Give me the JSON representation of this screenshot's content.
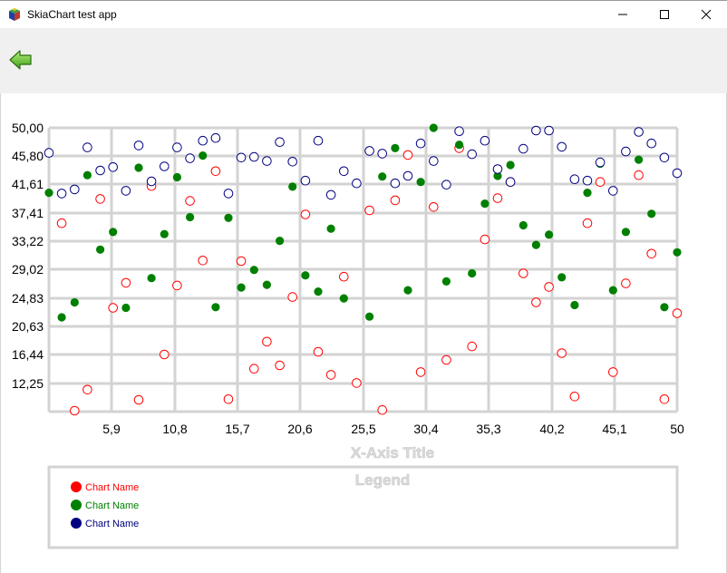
{
  "window": {
    "title": "SkiaChart test app",
    "icon": "skiachart-cube-icon",
    "controls": [
      "minimize-icon",
      "maximize-icon",
      "close-icon"
    ]
  },
  "toolbar": {
    "back_icon": "green-left-arrow-icon"
  },
  "chart_data": {
    "type": "scatter",
    "xlabel": "X-Axis Title",
    "legend_title": "Legend",
    "legend_position": "bottom",
    "grid": true,
    "xlim": [
      1,
      50
    ],
    "ylim": [
      8.06,
      50
    ],
    "x_ticks": [
      "5,9",
      "10,8",
      "15,7",
      "20,6",
      "25,5",
      "30,4",
      "35,3",
      "40,2",
      "45,1",
      "50"
    ],
    "y_ticks": [
      "50,00",
      "45,80",
      "41,61",
      "37,41",
      "33,22",
      "29,02",
      "24,83",
      "20,63",
      "16,44",
      "12,25"
    ],
    "series": [
      {
        "name": "Chart Name",
        "color": "#ff0000",
        "marker": "hollow-circle",
        "points": [
          [
            1,
            35.9
          ],
          [
            2,
            8.2
          ],
          [
            3,
            11.3
          ],
          [
            4,
            39.5
          ],
          [
            5,
            23.4
          ],
          [
            6,
            27.1
          ],
          [
            7,
            9.8
          ],
          [
            8,
            41.4
          ],
          [
            9,
            16.5
          ],
          [
            10,
            26.7
          ],
          [
            11,
            39.2
          ],
          [
            12,
            30.4
          ],
          [
            13,
            43.6
          ],
          [
            14,
            9.9
          ],
          [
            15,
            30.3
          ],
          [
            16,
            14.4
          ],
          [
            17,
            18.4
          ],
          [
            18,
            14.9
          ],
          [
            19,
            25.0
          ],
          [
            20,
            37.2
          ],
          [
            21,
            16.9
          ],
          [
            22,
            13.5
          ],
          [
            23,
            28.0
          ],
          [
            24,
            12.3
          ],
          [
            25,
            37.8
          ],
          [
            26,
            8.3
          ],
          [
            27,
            39.3
          ],
          [
            28,
            46.0
          ],
          [
            29,
            13.9
          ],
          [
            30,
            38.3
          ],
          [
            31,
            15.7
          ],
          [
            32,
            47.0
          ],
          [
            33,
            17.7
          ],
          [
            34,
            33.5
          ],
          [
            35,
            39.6
          ],
          [
            36,
            42.0
          ],
          [
            37,
            28.5
          ],
          [
            38,
            24.2
          ],
          [
            39,
            26.5
          ],
          [
            40,
            16.7
          ],
          [
            41,
            10.3
          ],
          [
            42,
            35.9
          ],
          [
            43,
            42.0
          ],
          [
            44,
            13.9
          ],
          [
            45,
            27.0
          ],
          [
            46,
            43.0
          ],
          [
            47,
            31.4
          ],
          [
            48,
            9.9
          ],
          [
            49,
            22.6
          ]
        ]
      },
      {
        "name": "Chart Name",
        "color": "#008000",
        "marker": "filled-circle",
        "points": [
          [
            0,
            40.4
          ],
          [
            1,
            22.0
          ],
          [
            2,
            24.2
          ],
          [
            3,
            43.0
          ],
          [
            4,
            32.0
          ],
          [
            5,
            34.6
          ],
          [
            6,
            23.4
          ],
          [
            7,
            44.1
          ],
          [
            8,
            27.8
          ],
          [
            9,
            34.3
          ],
          [
            10,
            42.7
          ],
          [
            11,
            36.8
          ],
          [
            12,
            45.9
          ],
          [
            13,
            23.5
          ],
          [
            14,
            36.7
          ],
          [
            15,
            26.4
          ],
          [
            16,
            29.0
          ],
          [
            17,
            26.8
          ],
          [
            18,
            33.3
          ],
          [
            19,
            41.3
          ],
          [
            20,
            28.2
          ],
          [
            21,
            25.8
          ],
          [
            22,
            35.1
          ],
          [
            23,
            24.8
          ],
          [
            24,
            41.9
          ],
          [
            25,
            22.1
          ],
          [
            26,
            42.8
          ],
          [
            27,
            47.0
          ],
          [
            28,
            26.0
          ],
          [
            29,
            42.0
          ],
          [
            30,
            50.0
          ],
          [
            31,
            27.3
          ],
          [
            32,
            47.5
          ],
          [
            33,
            28.5
          ],
          [
            34,
            38.8
          ],
          [
            35,
            42.9
          ],
          [
            36,
            44.5
          ],
          [
            37,
            35.6
          ],
          [
            38,
            32.7
          ],
          [
            39,
            34.2
          ],
          [
            40,
            27.9
          ],
          [
            41,
            23.8
          ],
          [
            42,
            40.4
          ],
          [
            43,
            44.7
          ],
          [
            44,
            26.0
          ],
          [
            45,
            34.6
          ],
          [
            46,
            45.3
          ],
          [
            47,
            37.3
          ],
          [
            48,
            23.5
          ],
          [
            49,
            31.6
          ]
        ]
      },
      {
        "name": "Chart Name",
        "color": "#000080",
        "marker": "hollow-circle",
        "points": [
          [
            0,
            46.3
          ],
          [
            1,
            40.3
          ],
          [
            2,
            40.9
          ],
          [
            3,
            47.1
          ],
          [
            4,
            43.7
          ],
          [
            5,
            44.2
          ],
          [
            6,
            40.7
          ],
          [
            7,
            47.4
          ],
          [
            8,
            42.1
          ],
          [
            9,
            44.3
          ],
          [
            10,
            47.1
          ],
          [
            11,
            45.5
          ],
          [
            12,
            48.1
          ],
          [
            13,
            48.5
          ],
          [
            14,
            40.3
          ],
          [
            15,
            45.6
          ],
          [
            16,
            45.7
          ],
          [
            17,
            45.1
          ],
          [
            18,
            47.9
          ],
          [
            19,
            45.0
          ],
          [
            20,
            42.2
          ],
          [
            21,
            48.1
          ],
          [
            22,
            40.1
          ],
          [
            23,
            43.6
          ],
          [
            24,
            41.8
          ],
          [
            25,
            46.6
          ],
          [
            26,
            46.2
          ],
          [
            27,
            41.8
          ],
          [
            28,
            42.9
          ],
          [
            29,
            47.7
          ],
          [
            30,
            45.1
          ],
          [
            31,
            41.6
          ],
          [
            32,
            49.5
          ],
          [
            33,
            46.1
          ],
          [
            34,
            48.1
          ],
          [
            35,
            43.9
          ],
          [
            36,
            42.0
          ],
          [
            37,
            46.9
          ],
          [
            38,
            49.6
          ],
          [
            39,
            49.6
          ],
          [
            40,
            47.2
          ],
          [
            41,
            42.4
          ],
          [
            42,
            42.2
          ],
          [
            43,
            44.9
          ],
          [
            44,
            40.7
          ],
          [
            45,
            46.5
          ],
          [
            46,
            49.4
          ],
          [
            47,
            47.7
          ],
          [
            48,
            45.6
          ],
          [
            49,
            43.3
          ]
        ]
      }
    ]
  }
}
